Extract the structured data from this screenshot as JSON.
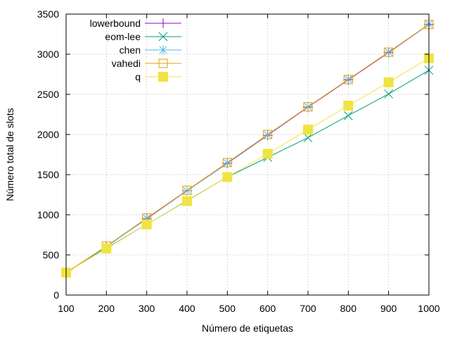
{
  "chart_data": {
    "type": "line",
    "xlabel": "Número de etiquetas",
    "ylabel": "Número total de slots",
    "xlim": [
      100,
      1000
    ],
    "ylim": [
      0,
      3500
    ],
    "xticks": [
      100,
      200,
      300,
      400,
      500,
      600,
      700,
      800,
      900,
      1000
    ],
    "yticks": [
      0,
      500,
      1000,
      1500,
      2000,
      2500,
      3000,
      3500
    ],
    "grid": true,
    "legend_position": "top-left",
    "x": [
      100,
      200,
      300,
      400,
      500,
      600,
      700,
      800,
      900,
      1000
    ],
    "series": [
      {
        "name": "lowerbound",
        "color": "#9400d3",
        "marker": "plus",
        "values": [
          272,
          607,
          950,
          1300,
          1640,
          1990,
          2340,
          2680,
          3020,
          3370
        ]
      },
      {
        "name": "eom-lee",
        "color": "#009e73",
        "marker": "cross",
        "values": [
          282,
          585,
          880,
          1175,
          1470,
          1715,
          1960,
          2235,
          2505,
          2800
        ]
      },
      {
        "name": "chen",
        "color": "#56b4e9",
        "marker": "star",
        "values": [
          278,
          600,
          955,
          1300,
          1645,
          1995,
          2345,
          2685,
          3025,
          3375
        ]
      },
      {
        "name": "vahedi",
        "color": "#e69f00",
        "marker": "open-square",
        "values": [
          280,
          610,
          960,
          1305,
          1650,
          2000,
          2345,
          2685,
          3025,
          3370
        ]
      },
      {
        "name": "q",
        "color": "#f0e442",
        "marker": "filled-square",
        "values": [
          280,
          580,
          880,
          1170,
          1470,
          1760,
          2060,
          2360,
          2650,
          2950
        ]
      }
    ]
  }
}
